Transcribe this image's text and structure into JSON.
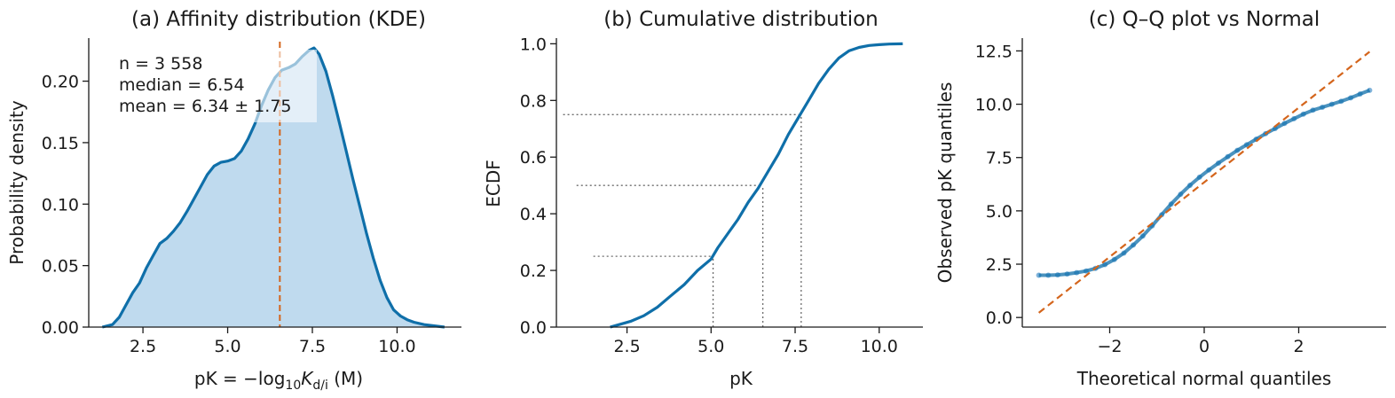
{
  "colors": {
    "primary": "#0f6fa9",
    "fill": "#bfdaee",
    "accent": "#d4651c",
    "scatter": "#6aa6d4",
    "guide": "#6b6b6b",
    "text": "#1a1a1a"
  },
  "chart_data": [
    {
      "type": "area",
      "title": "(a) Affinity distribution (KDE)",
      "xlabel_parts": [
        "pK = −log",
        "10",
        "K",
        "d/i",
        " (M)"
      ],
      "ylabel": "Probability density",
      "xlim": [
        0.9,
        11.9
      ],
      "ylim": [
        0,
        0.235
      ],
      "xticks": [
        2.5,
        5.0,
        7.5,
        10.0
      ],
      "yticks": [
        0.0,
        0.05,
        0.1,
        0.15,
        0.2
      ],
      "xtick_labels": [
        "2.5",
        "5.0",
        "7.5",
        "10.0"
      ],
      "ytick_labels": [
        "0.00",
        "0.05",
        "0.10",
        "0.15",
        "0.20"
      ],
      "median_line": 6.54,
      "annotation": [
        "n = 3 558",
        "median = 6.54",
        "mean = 6.34 ± 1.75"
      ],
      "x": [
        1.3,
        1.6,
        1.8,
        2.0,
        2.2,
        2.4,
        2.6,
        2.8,
        3.0,
        3.2,
        3.4,
        3.6,
        3.8,
        4.0,
        4.2,
        4.4,
        4.6,
        4.8,
        5.0,
        5.2,
        5.4,
        5.6,
        5.8,
        6.0,
        6.2,
        6.4,
        6.6,
        6.8,
        7.0,
        7.2,
        7.4,
        7.55,
        7.7,
        7.9,
        8.1,
        8.3,
        8.5,
        8.7,
        8.9,
        9.1,
        9.3,
        9.5,
        9.7,
        9.9,
        10.1,
        10.3,
        10.5,
        10.8,
        11.1,
        11.4
      ],
      "y": [
        0.0,
        0.002,
        0.008,
        0.018,
        0.028,
        0.036,
        0.048,
        0.058,
        0.068,
        0.072,
        0.078,
        0.085,
        0.094,
        0.104,
        0.114,
        0.124,
        0.131,
        0.134,
        0.135,
        0.137,
        0.143,
        0.153,
        0.165,
        0.18,
        0.193,
        0.203,
        0.209,
        0.211,
        0.214,
        0.22,
        0.225,
        0.227,
        0.222,
        0.208,
        0.188,
        0.166,
        0.143,
        0.12,
        0.098,
        0.076,
        0.056,
        0.038,
        0.024,
        0.014,
        0.009,
        0.006,
        0.004,
        0.002,
        0.001,
        0.0
      ]
    },
    {
      "type": "line",
      "title": "(b) Cumulative distribution",
      "xlabel": "pK",
      "ylabel": "ECDF",
      "xlim": [
        0.4,
        11.3
      ],
      "ylim": [
        0,
        1.02
      ],
      "xticks": [
        2.5,
        5.0,
        7.5,
        10.0
      ],
      "yticks": [
        0.0,
        0.2,
        0.4,
        0.6,
        0.8,
        1.0
      ],
      "xtick_labels": [
        "2.5",
        "5.0",
        "7.5",
        "10.0"
      ],
      "ytick_labels": [
        "0.0",
        "0.2",
        "0.4",
        "0.6",
        "0.8",
        "1.0"
      ],
      "quartile_guides": [
        {
          "x": 5.06,
          "y": 0.25,
          "x_start": 1.5
        },
        {
          "x": 6.54,
          "y": 0.5,
          "x_start": 1.0
        },
        {
          "x": 7.68,
          "y": 0.75,
          "x_start": 0.6
        }
      ],
      "x": [
        2.0,
        2.3,
        2.6,
        3.0,
        3.4,
        3.8,
        4.2,
        4.6,
        5.0,
        5.2,
        5.5,
        5.8,
        6.1,
        6.4,
        6.7,
        7.0,
        7.3,
        7.6,
        7.9,
        8.2,
        8.5,
        8.8,
        9.1,
        9.4,
        9.7,
        10.0,
        10.3,
        10.7
      ],
      "y": [
        0.0,
        0.01,
        0.02,
        0.04,
        0.07,
        0.11,
        0.15,
        0.2,
        0.24,
        0.28,
        0.33,
        0.38,
        0.44,
        0.49,
        0.55,
        0.61,
        0.68,
        0.74,
        0.8,
        0.86,
        0.91,
        0.95,
        0.975,
        0.987,
        0.994,
        0.997,
        0.999,
        1.0
      ]
    },
    {
      "type": "scatter",
      "title": "(c) Q–Q plot vs Normal",
      "xlabel": "Theoretical normal quantiles",
      "ylabel": "Observed pK quantiles",
      "xlim": [
        -3.85,
        3.85
      ],
      "ylim": [
        -0.45,
        13.1
      ],
      "xticks": [
        -2,
        0,
        2
      ],
      "yticks": [
        0.0,
        2.5,
        5.0,
        7.5,
        10.0,
        12.5
      ],
      "xtick_labels": [
        "−2",
        "0",
        "2"
      ],
      "ytick_labels": [
        "0.0",
        "2.5",
        "5.0",
        "7.5",
        "10.0",
        "12.5"
      ],
      "reference_line": {
        "x": [
          -3.5,
          3.5
        ],
        "y": [
          0.22,
          12.46
        ]
      },
      "x": [
        -3.5,
        -3.3,
        -3.1,
        -2.9,
        -2.7,
        -2.5,
        -2.3,
        -2.1,
        -1.9,
        -1.7,
        -1.5,
        -1.3,
        -1.1,
        -0.9,
        -0.7,
        -0.5,
        -0.3,
        -0.1,
        0.1,
        0.3,
        0.5,
        0.7,
        0.9,
        1.1,
        1.3,
        1.5,
        1.7,
        1.9,
        2.1,
        2.3,
        2.5,
        2.7,
        2.9,
        3.1,
        3.3,
        3.5
      ],
      "y": [
        1.98,
        1.98,
        2.0,
        2.04,
        2.1,
        2.18,
        2.3,
        2.48,
        2.72,
        3.02,
        3.4,
        3.82,
        4.3,
        4.82,
        5.32,
        5.78,
        6.2,
        6.58,
        6.92,
        7.24,
        7.54,
        7.84,
        8.1,
        8.36,
        8.62,
        8.86,
        9.1,
        9.32,
        9.54,
        9.72,
        9.86,
        10.0,
        10.14,
        10.3,
        10.48,
        10.65
      ]
    }
  ]
}
